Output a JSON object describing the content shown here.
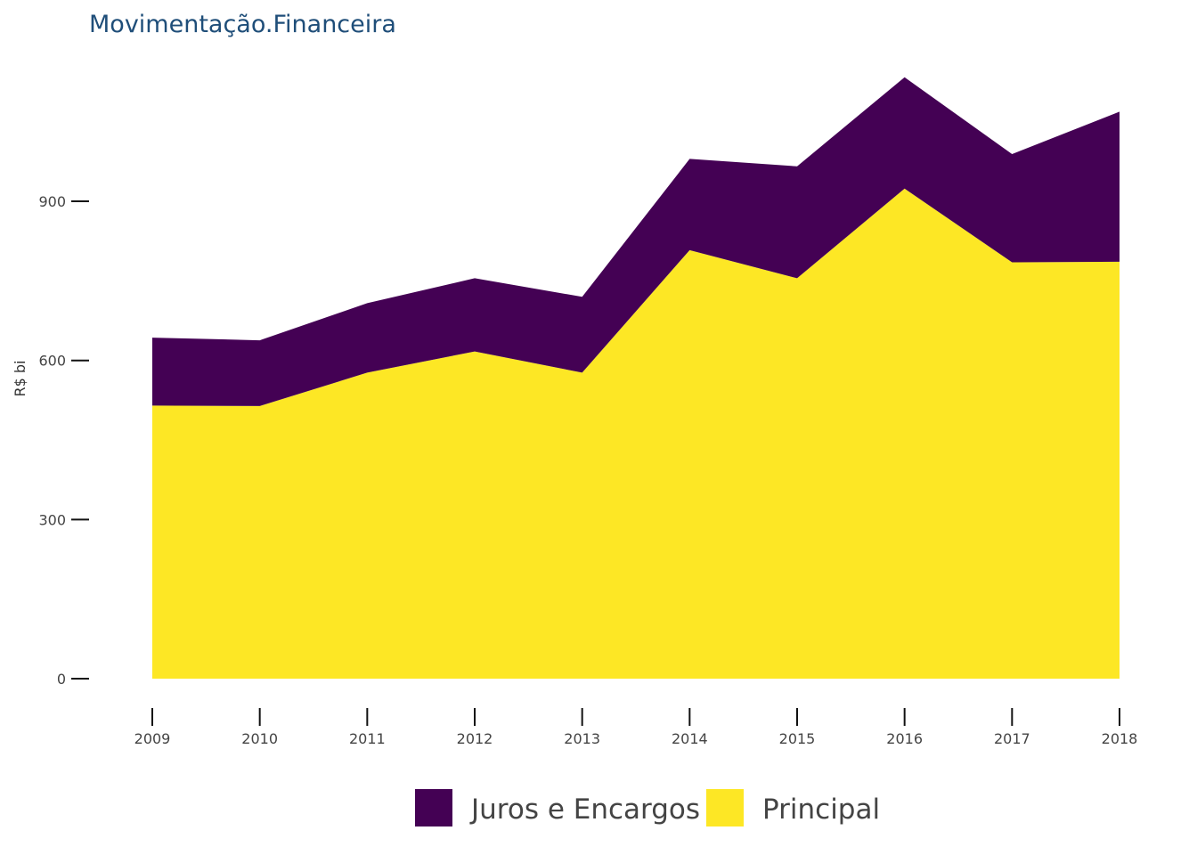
{
  "chart_data": {
    "type": "area",
    "stacked": true,
    "title": "Movimentação.Financeira",
    "xlabel": "",
    "ylabel": "R$ bi",
    "x": [
      "2009",
      "2010",
      "2011",
      "2012",
      "2013",
      "2014",
      "2015",
      "2016",
      "2017",
      "2018"
    ],
    "ylim": [
      0,
      1150
    ],
    "yticks": [
      0,
      300,
      600,
      900
    ],
    "yticklabels": [
      "0",
      "300",
      "600",
      "900"
    ],
    "grid": false,
    "legend_position": "bottom",
    "series": [
      {
        "name": "Principal",
        "color": "#fde725",
        "values": [
          515,
          514,
          577,
          617,
          577,
          808,
          755,
          924,
          785,
          786
        ]
      },
      {
        "name": "Juros e Encargos",
        "color": "#440154",
        "values": [
          128,
          124,
          131,
          138,
          143,
          172,
          211,
          210,
          204,
          283
        ]
      }
    ],
    "legend": [
      {
        "name": "Juros e Encargos",
        "color": "#440154"
      },
      {
        "name": "Principal",
        "color": "#fde725"
      }
    ]
  }
}
